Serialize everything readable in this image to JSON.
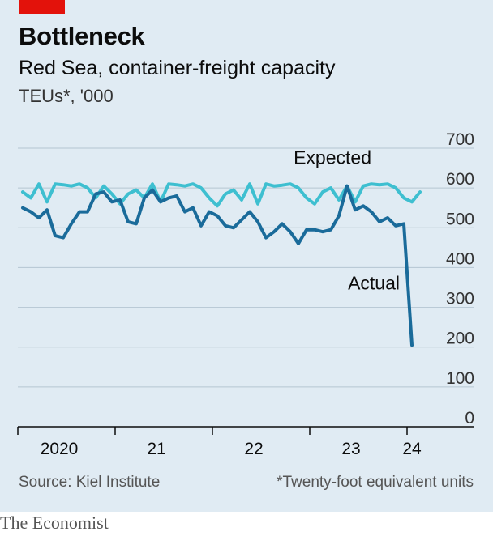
{
  "header": {
    "title": "Bottleneck",
    "subtitle": "Red Sea, container-freight capacity",
    "units": "TEUs*, '000"
  },
  "footer": {
    "source": "Source: Kiel Institute",
    "footnote": "*Twenty-foot equivalent units",
    "brand": "The Economist"
  },
  "colors": {
    "background": "#e0ebf3",
    "expected": "#3ebfd0",
    "actual": "#1a6b9a",
    "brand_red": "#e3120b"
  },
  "chart_data": {
    "type": "line",
    "ylim": [
      0,
      700
    ],
    "yticks": [
      0,
      100,
      200,
      300,
      400,
      500,
      600,
      700
    ],
    "xlim": [
      0,
      59
    ],
    "xticks": [
      {
        "label": "2020",
        "pos": 5
      },
      {
        "label": "21",
        "pos": 17
      },
      {
        "label": "22",
        "pos": 29
      },
      {
        "label": "23",
        "pos": 41
      },
      {
        "label": "24",
        "pos": 48.5
      }
    ],
    "year_boundaries": [
      0,
      12,
      24,
      36,
      48
    ],
    "series": [
      {
        "name": "Expected",
        "color": "#3ebfd0",
        "label_pos": {
          "x": 43,
          "y": 660
        },
        "label_anchor": "end",
        "x": [
          0,
          1,
          2,
          3,
          4,
          5,
          6,
          7,
          8,
          9,
          10,
          11,
          12,
          13,
          14,
          15,
          16,
          17,
          18,
          19,
          20,
          21,
          22,
          23,
          24,
          25,
          26,
          27,
          28,
          29,
          30,
          31,
          32,
          33,
          34,
          35,
          36,
          37,
          38,
          39,
          40,
          41,
          42,
          43,
          44,
          45,
          46,
          47,
          48,
          49
        ],
        "values": [
          590,
          575,
          610,
          565,
          610,
          608,
          605,
          610,
          600,
          575,
          605,
          585,
          560,
          585,
          595,
          575,
          610,
          565,
          610,
          608,
          605,
          610,
          600,
          575,
          555,
          585,
          595,
          570,
          610,
          560,
          610,
          605,
          607,
          610,
          600,
          575,
          560,
          590,
          600,
          570,
          605,
          565,
          605,
          610,
          608,
          610,
          600,
          575,
          565,
          590
        ]
      },
      {
        "name": "Actual",
        "color": "#1a6b9a",
        "label_pos": {
          "x": 46.5,
          "y": 345
        },
        "label_anchor": "end",
        "x": [
          0,
          1,
          2,
          3,
          4,
          5,
          6,
          7,
          8,
          9,
          10,
          11,
          12,
          13,
          14,
          15,
          16,
          17,
          18,
          19,
          20,
          21,
          22,
          23,
          24,
          25,
          26,
          27,
          28,
          29,
          30,
          31,
          32,
          33,
          34,
          35,
          36,
          37,
          38,
          39,
          40,
          41,
          42,
          43,
          44,
          45,
          46,
          47,
          48,
          49
        ],
        "values": [
          550,
          540,
          525,
          545,
          480,
          475,
          510,
          540,
          540,
          585,
          590,
          565,
          570,
          515,
          510,
          575,
          595,
          565,
          575,
          580,
          540,
          550,
          505,
          540,
          530,
          505,
          500,
          520,
          540,
          515,
          475,
          490,
          510,
          490,
          460,
          495,
          495,
          490,
          495,
          530,
          605,
          545,
          555,
          540,
          515,
          525,
          505,
          510,
          205,
          null
        ]
      }
    ]
  }
}
